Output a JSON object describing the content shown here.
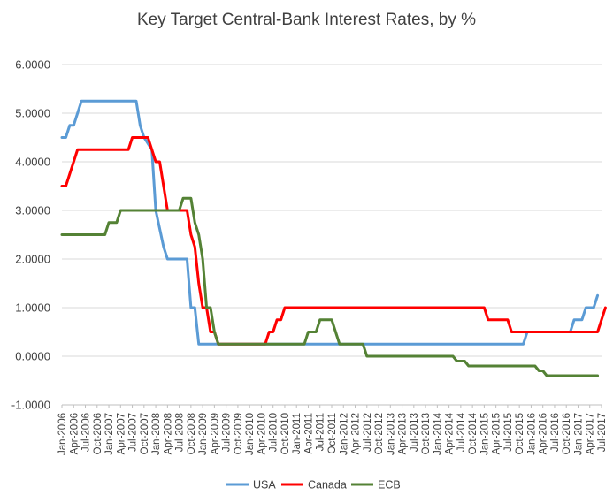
{
  "chart_data": {
    "type": "line",
    "title": "Key Target Central-Bank Interest Rates, by %",
    "xlabel": "",
    "ylabel": "",
    "ylim": [
      -1,
      6
    ],
    "ytick_labels": [
      "6.0000",
      "5.0000",
      "4.0000",
      "3.0000",
      "2.0000",
      "1.0000",
      "0.0000",
      "-1.0000"
    ],
    "yticks": [
      6,
      5,
      4,
      3,
      2,
      1,
      0,
      -1
    ],
    "x_start": "Jan-2006",
    "x_end": "Jul-2017",
    "x_tick_labels": [
      "Jan-2006",
      "Apr-2006",
      "Jul-2006",
      "Oct-2006",
      "Jan-2007",
      "Apr-2007",
      "Jul-2007",
      "Oct-2007",
      "Jan-2008",
      "Apr-2008",
      "Jul-2008",
      "Oct-2008",
      "Jan-2009",
      "Apr-2009",
      "Jul-2009",
      "Oct-2009",
      "Jan-2010",
      "Apr-2010",
      "Jul-2010",
      "Oct-2010",
      "Jan-2011",
      "Apr-2011",
      "Jul-2011",
      "Oct-2011",
      "Jan-2012",
      "Apr-2012",
      "Jul-2012",
      "Oct-2012",
      "Jan-2013",
      "Apr-2013",
      "Jul-2013",
      "Oct-2013",
      "Jan-2014",
      "Apr-2014",
      "Jul-2014",
      "Oct-2014",
      "Jan-2015",
      "Apr-2015",
      "Jul-2015",
      "Oct-2015",
      "Jan-2016",
      "Apr-2016",
      "Jul-2016",
      "Oct-2016",
      "Jan-2017",
      "Apr-2017",
      "Jul-2017"
    ],
    "grid": true,
    "legend_position": "bottom",
    "series": [
      {
        "name": "USA",
        "color": "#5b9bd5",
        "points": [
          [
            "Jan-2006",
            4.5
          ],
          [
            "Feb-2006",
            4.5
          ],
          [
            "Mar-2006",
            4.75
          ],
          [
            "Apr-2006",
            4.75
          ],
          [
            "May-2006",
            5.0
          ],
          [
            "Jun-2006",
            5.25
          ],
          [
            "Aug-2007",
            5.25
          ],
          [
            "Sep-2007",
            4.75
          ],
          [
            "Oct-2007",
            4.5
          ],
          [
            "Dec-2007",
            4.25
          ],
          [
            "Jan-2008",
            3.0
          ],
          [
            "Mar-2008",
            2.25
          ],
          [
            "Apr-2008",
            2.0
          ],
          [
            "Sep-2008",
            2.0
          ],
          [
            "Oct-2008",
            1.0
          ],
          [
            "Nov-2008",
            1.0
          ],
          [
            "Dec-2008",
            0.25
          ],
          [
            "Nov-2015",
            0.25
          ],
          [
            "Dec-2015",
            0.5
          ],
          [
            "Nov-2016",
            0.5
          ],
          [
            "Dec-2016",
            0.75
          ],
          [
            "Feb-2017",
            0.75
          ],
          [
            "Mar-2017",
            1.0
          ],
          [
            "May-2017",
            1.0
          ],
          [
            "Jun-2017",
            1.25
          ]
        ]
      },
      {
        "name": "Canada",
        "color": "#ff0000",
        "points": [
          [
            "Jan-2006",
            3.5
          ],
          [
            "Feb-2006",
            3.5
          ],
          [
            "Mar-2006",
            3.75
          ],
          [
            "Apr-2006",
            4.0
          ],
          [
            "May-2006",
            4.25
          ],
          [
            "Jun-2007",
            4.25
          ],
          [
            "Jul-2007",
            4.5
          ],
          [
            "Nov-2007",
            4.5
          ],
          [
            "Dec-2007",
            4.25
          ],
          [
            "Jan-2008",
            4.0
          ],
          [
            "Feb-2008",
            4.0
          ],
          [
            "Mar-2008",
            3.5
          ],
          [
            "Apr-2008",
            3.0
          ],
          [
            "Sep-2008",
            3.0
          ],
          [
            "Oct-2008",
            2.5
          ],
          [
            "Nov-2008",
            2.25
          ],
          [
            "Dec-2008",
            1.5
          ],
          [
            "Jan-2009",
            1.0
          ],
          [
            "Feb-2009",
            1.0
          ],
          [
            "Mar-2009",
            0.5
          ],
          [
            "Apr-2009",
            0.5
          ],
          [
            "May-2009",
            0.25
          ],
          [
            "May-2010",
            0.25
          ],
          [
            "Jun-2010",
            0.5
          ],
          [
            "Jul-2010",
            0.5
          ],
          [
            "Aug-2010",
            0.75
          ],
          [
            "Sep-2010",
            0.75
          ],
          [
            "Oct-2010",
            1.0
          ],
          [
            "Jan-2015",
            1.0
          ],
          [
            "Feb-2015",
            0.75
          ],
          [
            "Jul-2015",
            0.75
          ],
          [
            "Aug-2015",
            0.5
          ],
          [
            "Jun-2017",
            0.5
          ],
          [
            "Jul-2017",
            0.75
          ],
          [
            "Aug-2017",
            1.0
          ]
        ]
      },
      {
        "name": "ECB",
        "color": "#548235",
        "points": [
          [
            "Jan-2006",
            2.5
          ],
          [
            "Dec-2006",
            2.5
          ],
          [
            "Jan-2007",
            2.75
          ],
          [
            "Mar-2007",
            2.75
          ],
          [
            "Apr-2007",
            3.0
          ],
          [
            "Jul-2008",
            3.0
          ],
          [
            "Aug-2008",
            3.25
          ],
          [
            "Oct-2008",
            3.25
          ],
          [
            "Nov-2008",
            2.75
          ],
          [
            "Dec-2008",
            2.5
          ],
          [
            "Jan-2009",
            2.0
          ],
          [
            "Feb-2009",
            1.0
          ],
          [
            "Mar-2009",
            1.0
          ],
          [
            "Apr-2009",
            0.5
          ],
          [
            "May-2009",
            0.25
          ],
          [
            "Mar-2011",
            0.25
          ],
          [
            "Apr-2011",
            0.5
          ],
          [
            "Jun-2011",
            0.5
          ],
          [
            "Jul-2011",
            0.75
          ],
          [
            "Oct-2011",
            0.75
          ],
          [
            "Nov-2011",
            0.5
          ],
          [
            "Dec-2011",
            0.25
          ],
          [
            "Jun-2012",
            0.25
          ],
          [
            "Jul-2012",
            0.0
          ],
          [
            "May-2014",
            0.0
          ],
          [
            "Jun-2014",
            -0.1
          ],
          [
            "Aug-2014",
            -0.1
          ],
          [
            "Sep-2014",
            -0.2
          ],
          [
            "Feb-2016",
            -0.2
          ],
          [
            "Mar-2016",
            -0.3
          ],
          [
            "Apr-2016",
            -0.3
          ],
          [
            "May-2016",
            -0.4
          ],
          [
            "Jun-2017",
            -0.4
          ]
        ]
      }
    ]
  }
}
